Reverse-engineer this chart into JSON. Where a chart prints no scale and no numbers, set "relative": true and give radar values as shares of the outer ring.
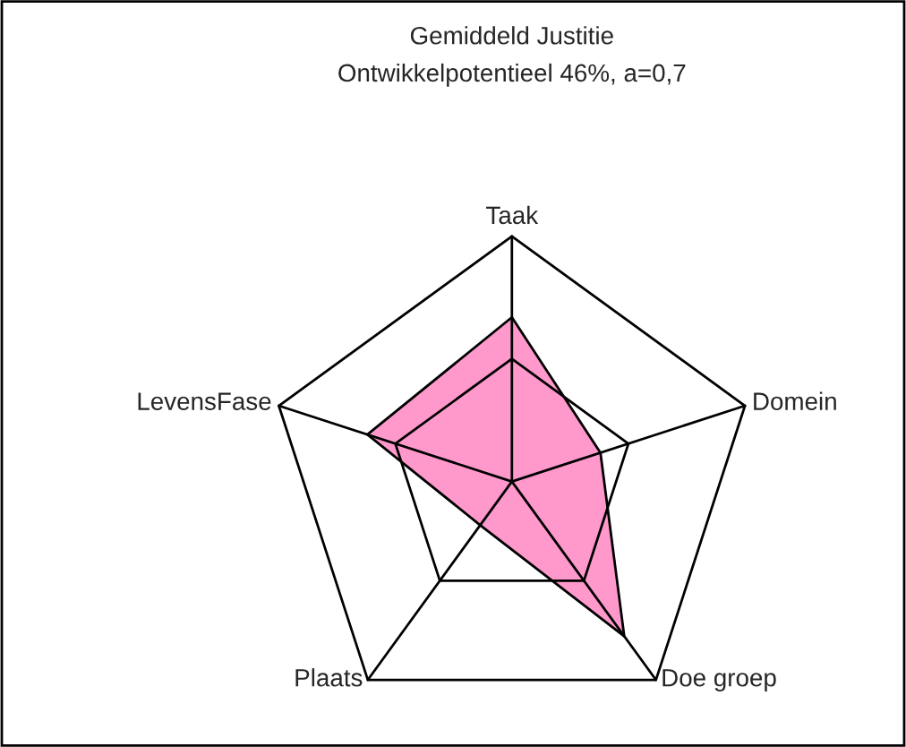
{
  "chart_data": {
    "type": "radar",
    "title": "Gemiddeld Justitie",
    "subtitle": "Ontwikkelpotentieel 46%, a=0,7",
    "categories": [
      "Taak",
      "Domein",
      "Doe groep",
      "Plaats",
      "LevensFase"
    ],
    "series": [
      {
        "color": "#ff99cc",
        "values": [
          0.67,
          0.38,
          0.78,
          0.22,
          0.62
        ]
      }
    ],
    "relative": true,
    "grid": true
  }
}
